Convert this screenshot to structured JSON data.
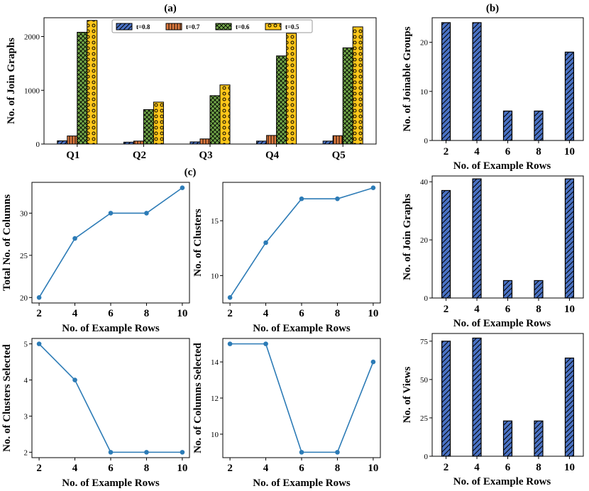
{
  "figure": {
    "labels": {
      "a": "(a)",
      "b": "(b)",
      "c": "(c)"
    }
  },
  "chart_data": [
    {
      "id": "a",
      "type": "bar",
      "panel_label": "(a)",
      "categories": [
        "Q1",
        "Q2",
        "Q3",
        "Q4",
        "Q5"
      ],
      "series": [
        {
          "name": "t=0.8",
          "values": [
            60,
            35,
            40,
            55,
            55
          ],
          "color": "#4a72c4",
          "pattern": "diag"
        },
        {
          "name": "t=0.7",
          "values": [
            150,
            55,
            95,
            160,
            155
          ],
          "color": "#e07b40",
          "pattern": "vert"
        },
        {
          "name": "t=0.6",
          "values": [
            2080,
            640,
            900,
            1640,
            1790
          ],
          "color": "#72a849",
          "pattern": "cross"
        },
        {
          "name": "t=0.5",
          "values": [
            2300,
            780,
            1100,
            2060,
            2180
          ],
          "color": "#ffc61a",
          "pattern": "dots"
        }
      ],
      "xlabel": "",
      "ylabel": "No. of Join Graphs",
      "ylim": [
        0,
        2350
      ],
      "yticks": [
        0,
        1000,
        2000
      ],
      "legend": "top"
    },
    {
      "id": "b1",
      "type": "bar",
      "panel_label": "(b)",
      "categories": [
        "2",
        "4",
        "6",
        "8",
        "10"
      ],
      "values": [
        24,
        24,
        6,
        6,
        18
      ],
      "color": "#4a72c4",
      "xlabel": "No. of Example Rows",
      "ylabel": "No. of Joinable Groups",
      "ylim": [
        0,
        25
      ],
      "yticks": [
        0,
        10,
        20
      ]
    },
    {
      "id": "b2",
      "type": "bar",
      "categories": [
        "2",
        "4",
        "6",
        "8",
        "10"
      ],
      "values": [
        37,
        41,
        6,
        6,
        41
      ],
      "color": "#4a72c4",
      "xlabel": "No. of Example Rows",
      "ylabel": "No. of Join Graphs",
      "ylim": [
        0,
        42
      ],
      "yticks": [
        0,
        20,
        40
      ]
    },
    {
      "id": "b3",
      "type": "bar",
      "categories": [
        "2",
        "4",
        "6",
        "8",
        "10"
      ],
      "values": [
        75,
        77,
        23,
        23,
        64
      ],
      "color": "#4a72c4",
      "xlabel": "No. of Example Rows",
      "ylabel": "No. of Views",
      "ylim": [
        0,
        80
      ],
      "yticks": [
        0,
        25,
        50,
        75
      ]
    },
    {
      "id": "c1",
      "type": "line",
      "panel_label": "(c)",
      "x": [
        2,
        4,
        6,
        8,
        10
      ],
      "y": [
        20,
        27,
        30,
        30,
        33
      ],
      "color": "#2c7bb6",
      "xlabel": "No. of Example Rows",
      "ylabel": "Total No. of Columns",
      "xlim": [
        1.6,
        10.4
      ],
      "ylim": [
        19.35,
        33.65
      ],
      "xticks": [
        2,
        4,
        6,
        8,
        10
      ],
      "yticks": [
        20,
        25,
        30
      ]
    },
    {
      "id": "c2",
      "type": "line",
      "x": [
        2,
        4,
        6,
        8,
        10
      ],
      "y": [
        8,
        13,
        17,
        17,
        18
      ],
      "color": "#2c7bb6",
      "xlabel": "No. of Example Rows",
      "ylabel": "No. of Clusters",
      "xlim": [
        1.6,
        10.4
      ],
      "ylim": [
        7.5,
        18.5
      ],
      "xticks": [
        2,
        4,
        6,
        8,
        10
      ],
      "yticks": [
        10,
        15
      ]
    },
    {
      "id": "c3",
      "type": "line",
      "x": [
        2,
        4,
        6,
        8,
        10
      ],
      "y": [
        5,
        4,
        2,
        2,
        2
      ],
      "color": "#2c7bb6",
      "xlabel": "No. of Example Rows",
      "ylabel": "No. of Clusters Selected",
      "xlim": [
        1.6,
        10.4
      ],
      "ylim": [
        1.85,
        5.15
      ],
      "xticks": [
        2,
        4,
        6,
        8,
        10
      ],
      "yticks": [
        2,
        3,
        4,
        5
      ]
    },
    {
      "id": "c4",
      "type": "line",
      "x": [
        2,
        4,
        6,
        8,
        10
      ],
      "y": [
        15,
        15,
        9,
        9,
        14
      ],
      "color": "#2c7bb6",
      "xlabel": "No. of Example Rows",
      "ylabel": "No. of Columns Selected",
      "xlim": [
        1.6,
        10.4
      ],
      "ylim": [
        8.7,
        15.3
      ],
      "xticks": [
        2,
        4,
        6,
        8,
        10
      ],
      "yticks": [
        10,
        12,
        14
      ]
    }
  ]
}
